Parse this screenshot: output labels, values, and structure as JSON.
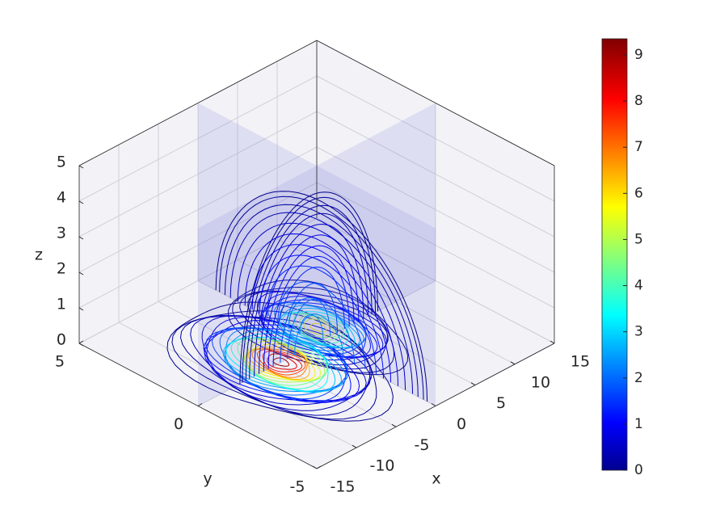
{
  "chart_data": {
    "type": "contour3",
    "xlabel": "x",
    "ylabel": "y",
    "zlabel": "z",
    "xlim": [
      -15,
      15
    ],
    "xticks": [
      -15,
      -10,
      -5,
      0,
      5,
      10,
      15
    ],
    "ylim": [
      -5,
      5
    ],
    "yticks": [
      -5,
      0,
      5
    ],
    "zlim": [
      0,
      5
    ],
    "zticks": [
      0,
      1,
      2,
      3,
      4,
      5
    ],
    "clim": [
      0,
      9.35
    ],
    "cticks": [
      0,
      1,
      2,
      3,
      4,
      5,
      6,
      7,
      8,
      9
    ],
    "colormap": "jet",
    "grid": true,
    "levels": [
      0.1,
      0.2,
      0.35,
      0.5,
      0.7,
      0.9,
      1.1,
      1.3,
      1.5,
      1.8,
      2.1,
      2.4,
      2.7,
      3,
      3.5,
      4,
      4.5,
      5,
      5.5,
      6,
      6.5,
      7,
      7.5,
      8,
      8.5,
      9
    ]
  }
}
